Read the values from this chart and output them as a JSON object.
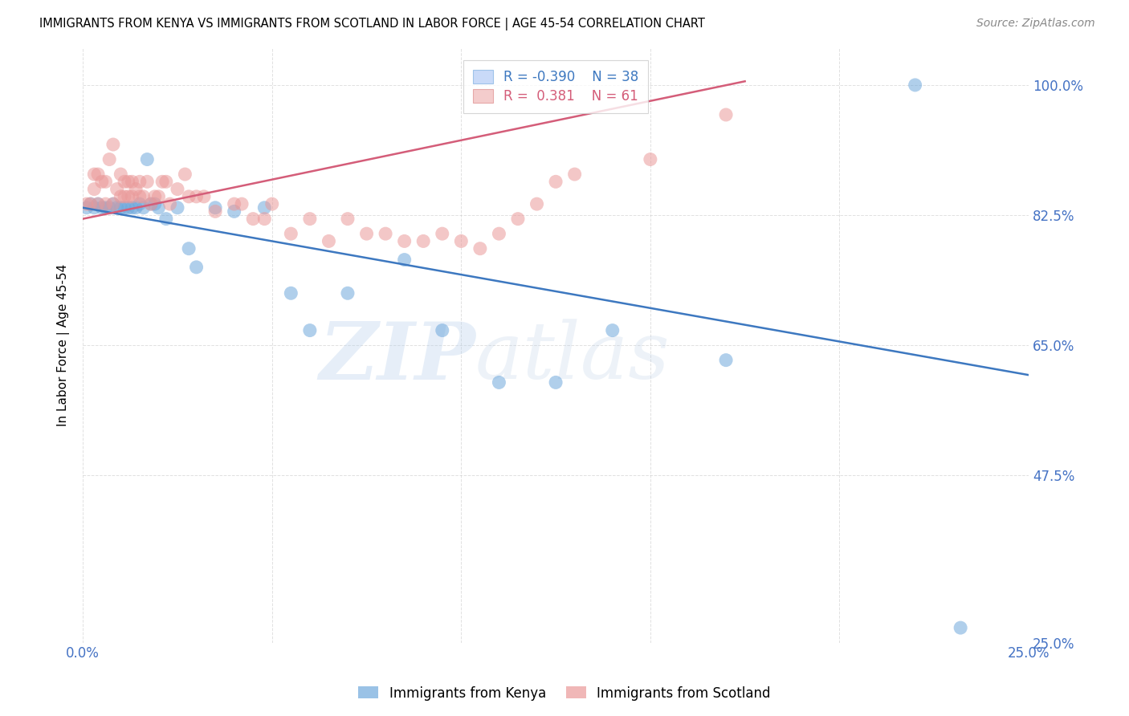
{
  "title": "IMMIGRANTS FROM KENYA VS IMMIGRANTS FROM SCOTLAND IN LABOR FORCE | AGE 45-54 CORRELATION CHART",
  "source": "Source: ZipAtlas.com",
  "ylabel_label": "In Labor Force | Age 45-54",
  "watermark_zip": "ZIP",
  "watermark_atlas": "atlas",
  "xlim": [
    0.0,
    0.25
  ],
  "ylim": [
    0.25,
    1.05
  ],
  "x_ticks": [
    0.0,
    0.05,
    0.1,
    0.15,
    0.2,
    0.25
  ],
  "y_tick_labels": [
    "25.0%",
    "47.5%",
    "65.0%",
    "82.5%",
    "100.0%"
  ],
  "y_ticks": [
    0.25,
    0.475,
    0.65,
    0.825,
    1.0
  ],
  "kenya_R": -0.39,
  "kenya_N": 38,
  "scotland_R": 0.381,
  "scotland_N": 61,
  "kenya_color": "#6fa8dc",
  "scotland_color": "#ea9999",
  "kenya_line_color": "#3d78c0",
  "scotland_line_color": "#d45d79",
  "legend_box_color_kenya": "#c9daf8",
  "legend_box_color_scotland": "#f4cccc",
  "kenya_scatter_x": [
    0.001,
    0.002,
    0.003,
    0.004,
    0.005,
    0.006,
    0.007,
    0.008,
    0.009,
    0.01,
    0.011,
    0.012,
    0.013,
    0.014,
    0.015,
    0.016,
    0.017,
    0.018,
    0.019,
    0.02,
    0.022,
    0.025,
    0.028,
    0.03,
    0.035,
    0.04,
    0.048,
    0.055,
    0.06,
    0.07,
    0.085,
    0.095,
    0.11,
    0.125,
    0.14,
    0.17,
    0.22,
    0.232
  ],
  "kenya_scatter_y": [
    0.835,
    0.84,
    0.835,
    0.84,
    0.835,
    0.835,
    0.835,
    0.84,
    0.835,
    0.835,
    0.835,
    0.835,
    0.835,
    0.835,
    0.84,
    0.835,
    0.9,
    0.84,
    0.84,
    0.835,
    0.82,
    0.835,
    0.78,
    0.755,
    0.835,
    0.83,
    0.835,
    0.72,
    0.67,
    0.72,
    0.765,
    0.67,
    0.6,
    0.6,
    0.67,
    0.63,
    1.0,
    0.27
  ],
  "scotland_scatter_x": [
    0.001,
    0.002,
    0.003,
    0.003,
    0.004,
    0.004,
    0.005,
    0.006,
    0.006,
    0.007,
    0.008,
    0.008,
    0.009,
    0.01,
    0.01,
    0.011,
    0.011,
    0.012,
    0.012,
    0.013,
    0.013,
    0.014,
    0.015,
    0.015,
    0.016,
    0.017,
    0.018,
    0.019,
    0.02,
    0.021,
    0.022,
    0.023,
    0.025,
    0.027,
    0.028,
    0.03,
    0.032,
    0.035,
    0.04,
    0.042,
    0.045,
    0.048,
    0.05,
    0.055,
    0.06,
    0.065,
    0.07,
    0.075,
    0.08,
    0.085,
    0.09,
    0.095,
    0.1,
    0.105,
    0.11,
    0.115,
    0.12,
    0.125,
    0.13,
    0.15,
    0.17
  ],
  "scotland_scatter_y": [
    0.84,
    0.84,
    0.86,
    0.88,
    0.84,
    0.88,
    0.87,
    0.87,
    0.84,
    0.9,
    0.92,
    0.84,
    0.86,
    0.88,
    0.85,
    0.87,
    0.85,
    0.87,
    0.85,
    0.87,
    0.85,
    0.86,
    0.87,
    0.85,
    0.85,
    0.87,
    0.84,
    0.85,
    0.85,
    0.87,
    0.87,
    0.84,
    0.86,
    0.88,
    0.85,
    0.85,
    0.85,
    0.83,
    0.84,
    0.84,
    0.82,
    0.82,
    0.84,
    0.8,
    0.82,
    0.79,
    0.82,
    0.8,
    0.8,
    0.79,
    0.79,
    0.8,
    0.79,
    0.78,
    0.8,
    0.82,
    0.84,
    0.87,
    0.88,
    0.9,
    0.96
  ],
  "background_color": "#ffffff",
  "grid_color": "#cccccc",
  "kenya_line_x": [
    0.0,
    0.25
  ],
  "kenya_line_y": [
    0.835,
    0.61
  ],
  "scotland_line_x": [
    0.0,
    0.175
  ],
  "scotland_line_y": [
    0.82,
    1.005
  ]
}
